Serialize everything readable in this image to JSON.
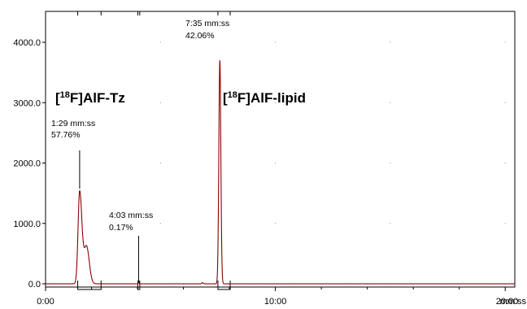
{
  "chart_data": {
    "type": "line",
    "x_unit": "mm:ss",
    "xlim_seconds": [
      0,
      1225
    ],
    "ylim": [
      -50,
      4500
    ],
    "x_ticks": [
      {
        "value": 0,
        "label": "0:00"
      },
      {
        "value": 600,
        "label": "10:00"
      },
      {
        "value": 1200,
        "label": "20:00"
      }
    ],
    "x_unit_label": "mm:ss",
    "y_ticks": [
      {
        "value": 0,
        "label": "0.0"
      },
      {
        "value": 1000,
        "label": "1000.0"
      },
      {
        "value": 2000,
        "label": "2000.0"
      },
      {
        "value": 3000,
        "label": "3000.0"
      },
      {
        "value": 4000,
        "label": "4000.0"
      }
    ],
    "line_color": "#8b0000",
    "peaks": [
      {
        "name": "[18F]AlF-Tz",
        "name_prefix": "[",
        "name_sup": "18",
        "name_suffix": "F]AlF-Tz",
        "time_label": "1:29 mm:ss",
        "area_label": "57.76%",
        "center": 89,
        "height": 1520,
        "width": 5.5,
        "secondary_center": 107,
        "secondary_height": 620,
        "secondary_width": 7,
        "integration_start": 84,
        "integration_end": 145
      },
      {
        "name": "",
        "time_label": "4:03 mm:ss",
        "area_label": "0.17%",
        "center": 243,
        "height": 55,
        "width": 0.8,
        "integration_start": 241,
        "integration_end": 246
      },
      {
        "name": "[18F]AlF-lipid",
        "name_prefix": "[",
        "name_sup": "18",
        "name_suffix": "F]AlF-lipid",
        "time_label": "7:35 mm:ss",
        "area_label": "42.06%",
        "center": 455,
        "height": 3700,
        "width": 2.6,
        "integration_start": 450,
        "integration_end": 482
      }
    ]
  }
}
